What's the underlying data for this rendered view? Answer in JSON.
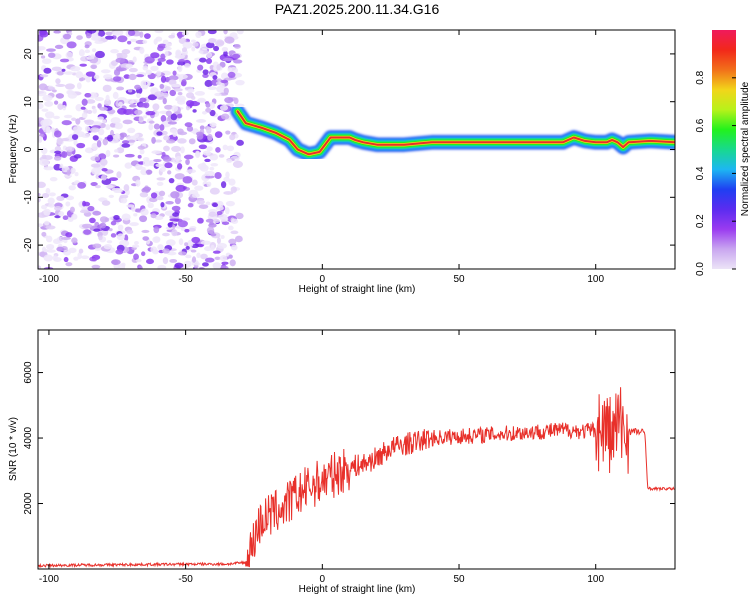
{
  "title": "PAZ1.2025.200.11.34.G16",
  "colors": {
    "snr_line": "#e8302a",
    "ridge_core": "#e8302a",
    "noise": "#8a2be2",
    "colorbar_stops": [
      "#ece4f7",
      "#c9a6f0",
      "#9a3bf0",
      "#5b2cf0",
      "#1f3ff2",
      "#1db7f2",
      "#18d98e",
      "#22f21c",
      "#b8f21a",
      "#f2d51a",
      "#f2701a",
      "#f2281a",
      "#f01a5c"
    ]
  },
  "chart_data": [
    {
      "type": "heatmap",
      "xlabel": "Height of straight line (km)",
      "ylabel": "Frequency (Hz)",
      "xlim": [
        -104,
        129
      ],
      "ylim": [
        -25,
        25
      ],
      "xticks": [
        -100,
        -50,
        0,
        50,
        100
      ],
      "yticks": [
        -20,
        -10,
        0,
        10,
        20
      ],
      "colorbar": {
        "label": "Normalized spectral amplitude",
        "range": [
          0,
          1
        ],
        "ticks": [
          "0.0",
          "0.2",
          "0.4",
          "0.6",
          "0.8"
        ]
      },
      "noise_region_x": [
        -104,
        -30
      ],
      "ridge": {
        "x": [
          -31,
          -28,
          -22,
          -17,
          -12,
          -9,
          -5,
          -1,
          1,
          3,
          8,
          10,
          12,
          15,
          20,
          30,
          40,
          50,
          60,
          70,
          80,
          88,
          92,
          96,
          100,
          104,
          106,
          108,
          110,
          112,
          120,
          129
        ],
        "y": [
          8,
          5.5,
          4.5,
          3.5,
          2,
          0,
          -1,
          -0.5,
          1,
          2.5,
          2.5,
          2.5,
          2,
          1.5,
          1,
          1,
          1.5,
          1.5,
          1.5,
          1.5,
          1.5,
          1.5,
          2.5,
          1.8,
          1.5,
          1.5,
          2,
          1.5,
          0.5,
          1.5,
          1.8,
          1.5
        ]
      }
    },
    {
      "type": "line",
      "xlabel": "Height of straight line (km)",
      "ylabel": "SNR (10 * v/v)",
      "xlim": [
        -104,
        129
      ],
      "ylim": [
        0,
        7300
      ],
      "xticks": [
        -100,
        -50,
        0,
        50,
        100
      ],
      "yticks": [
        2000,
        4000,
        6000
      ],
      "series": [
        {
          "x": [
            -104,
            -90,
            -75,
            -60,
            -45,
            -35,
            -28,
            -26,
            -24,
            -22,
            -18,
            -14,
            -10,
            -5,
            0,
            5,
            10,
            15,
            20,
            25,
            30,
            35,
            40,
            50,
            60,
            70,
            80,
            90,
            95,
            100,
            104,
            106,
            108,
            110,
            112,
            115,
            118,
            119,
            120,
            125,
            129
          ],
          "y": [
            100,
            120,
            130,
            140,
            150,
            150,
            200,
            600,
            1200,
            1500,
            1700,
            1900,
            2200,
            2500,
            2700,
            2900,
            3100,
            3200,
            3400,
            3700,
            3800,
            3900,
            4000,
            4050,
            4100,
            4150,
            4200,
            4250,
            4200,
            4250,
            4300,
            4000,
            4500,
            4300,
            4200,
            4200,
            4150,
            2500,
            2450,
            2450,
            2450
          ]
        }
      ]
    }
  ]
}
